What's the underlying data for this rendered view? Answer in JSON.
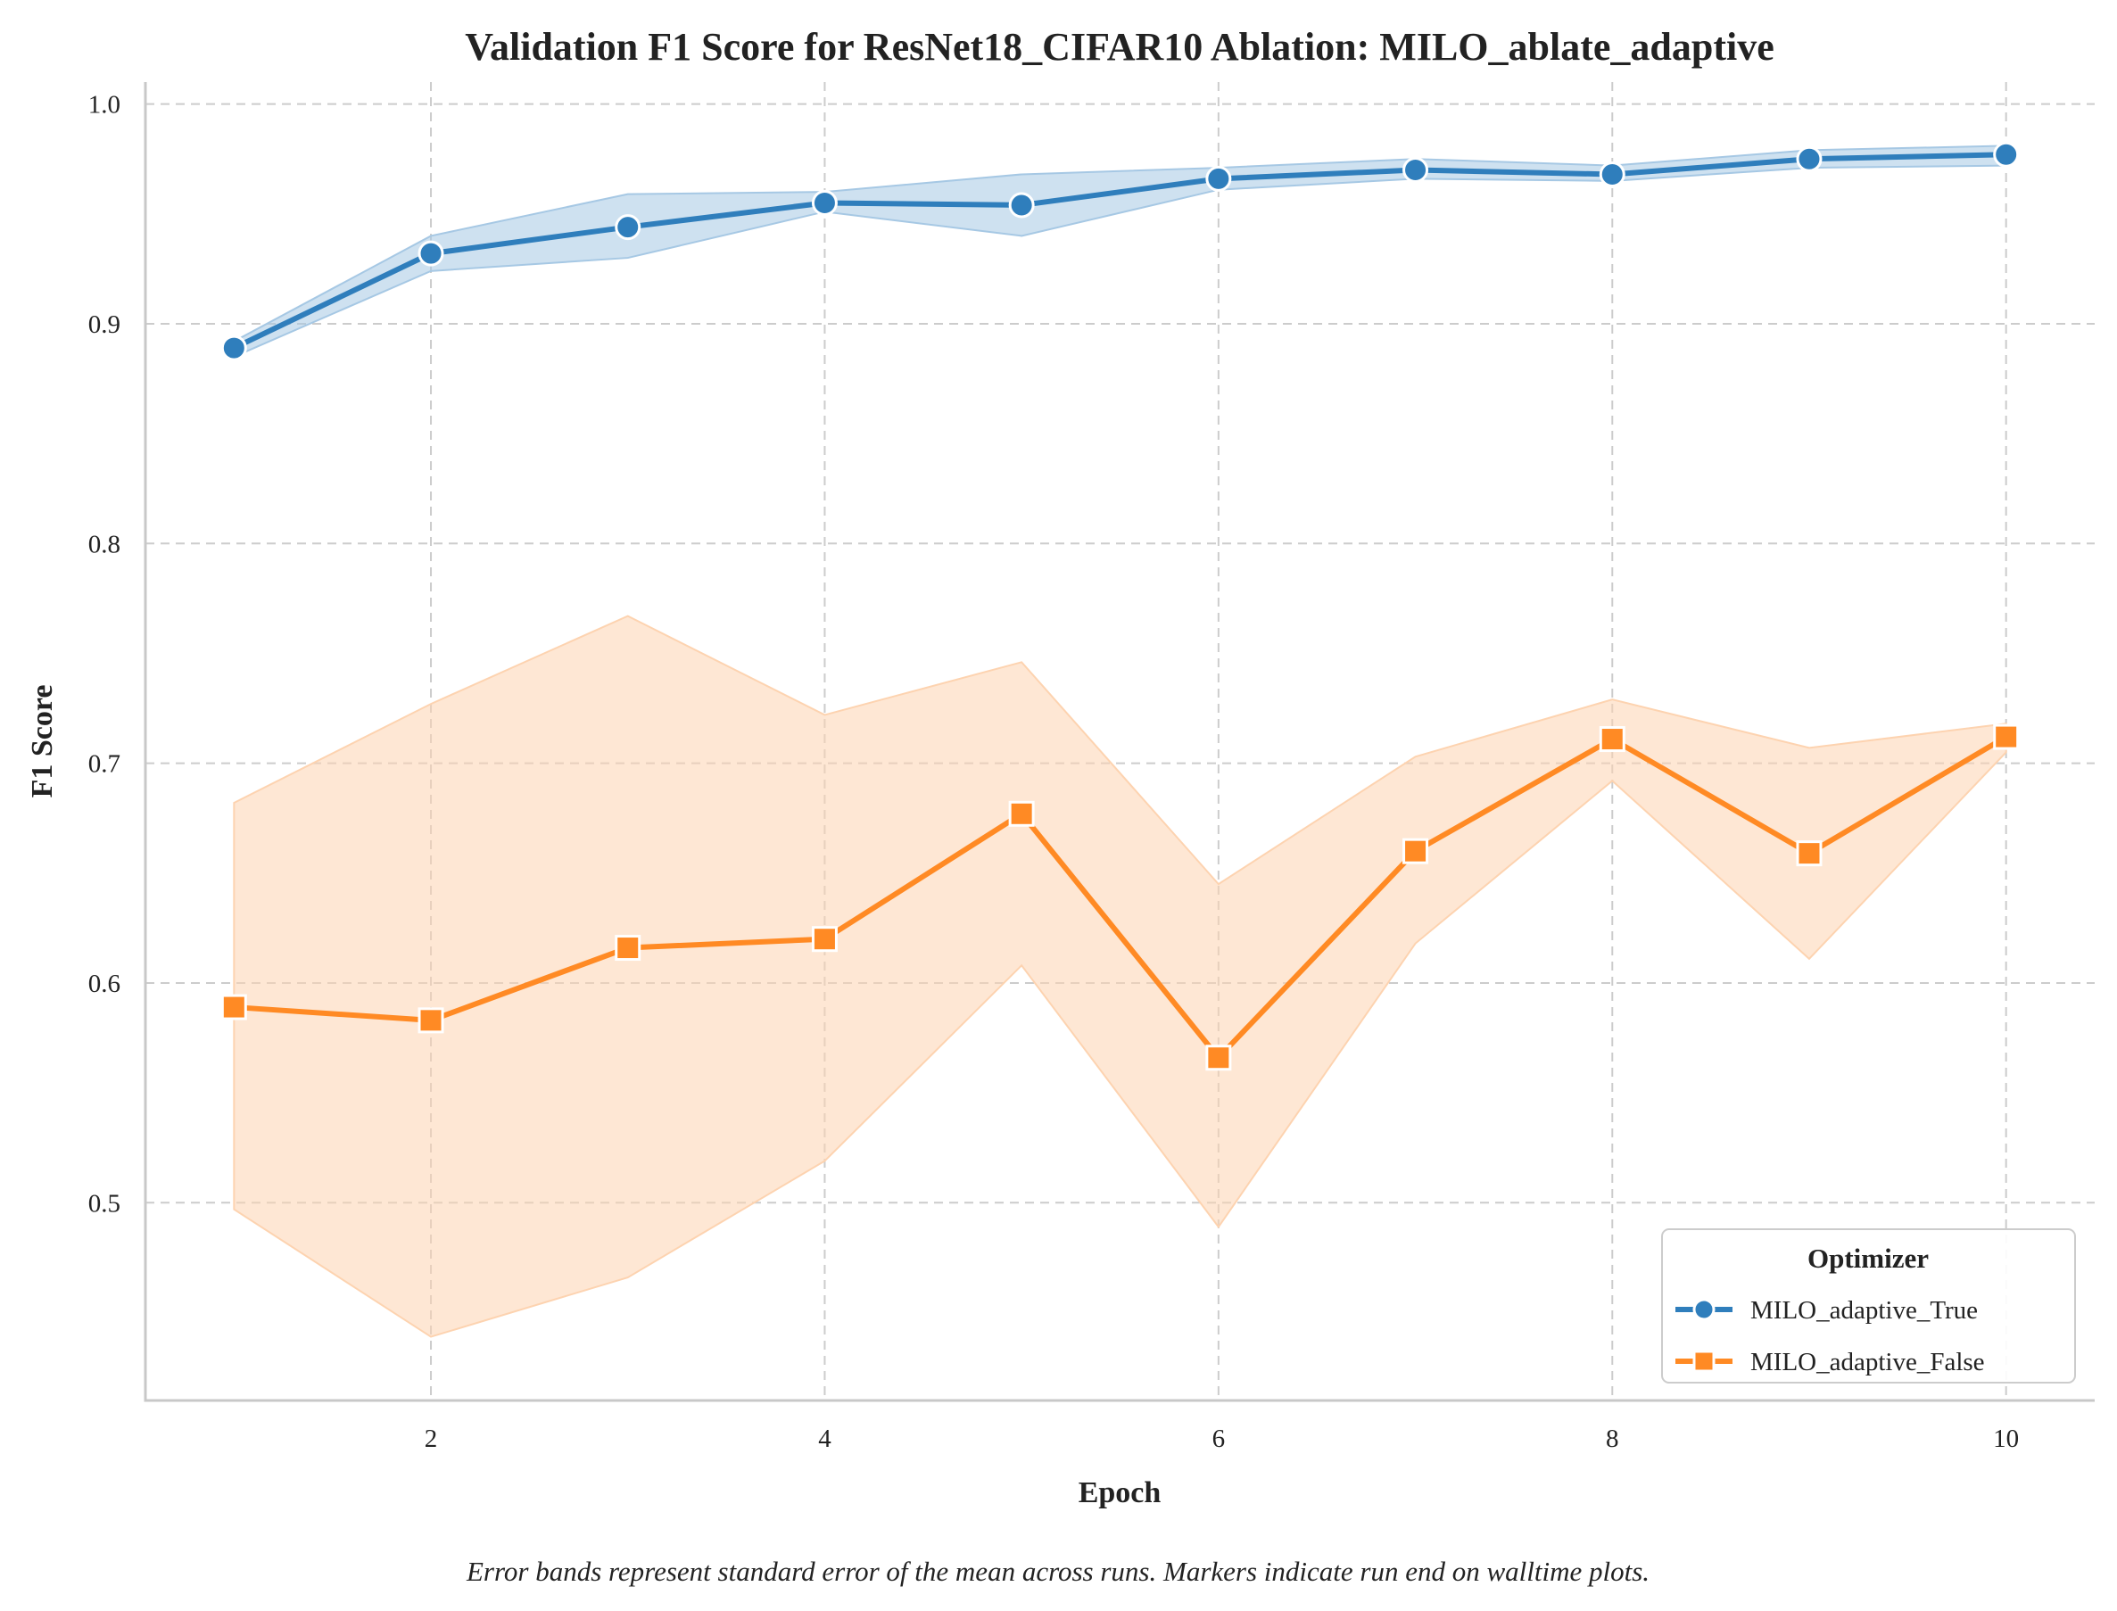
{
  "chart_data": {
    "type": "line",
    "title": "Validation F1 Score for ResNet18_CIFAR10 Ablation: MILO_ablate_adaptive",
    "xlabel": "Epoch",
    "ylabel": "F1 Score",
    "footnote": "Error bands represent standard error of the mean across runs. Markers indicate run end on walltime plots.",
    "xlim": [
      0.55,
      10.45
    ],
    "ylim": [
      0.41,
      1.01
    ],
    "xticks": [
      2,
      4,
      6,
      8,
      10
    ],
    "yticks": [
      0.5,
      0.6,
      0.7,
      0.8,
      0.9,
      1.0
    ],
    "ytick_labels": [
      "0.5",
      "0.6",
      "0.7",
      "0.8",
      "0.9",
      "1.0"
    ],
    "grid": true,
    "legend": {
      "title": "Optimizer",
      "position": "bottom-right"
    },
    "x": [
      1,
      2,
      3,
      4,
      5,
      6,
      7,
      8,
      9,
      10
    ],
    "series": [
      {
        "name": "MILO_adaptive_True",
        "color": "#2f7ebc",
        "band_color": "#a6c8e4",
        "marker": "circle",
        "values": [
          0.889,
          0.932,
          0.944,
          0.955,
          0.954,
          0.966,
          0.97,
          0.968,
          0.975,
          0.977
        ],
        "band_low": [
          0.885,
          0.924,
          0.93,
          0.951,
          0.94,
          0.961,
          0.966,
          0.965,
          0.971,
          0.972
        ],
        "band_high": [
          0.892,
          0.94,
          0.959,
          0.96,
          0.968,
          0.971,
          0.975,
          0.972,
          0.979,
          0.981
        ]
      },
      {
        "name": "MILO_adaptive_False",
        "color": "#ff8a24",
        "band_color": "#fdd3b0",
        "marker": "square",
        "values": [
          0.589,
          0.583,
          0.616,
          0.62,
          0.677,
          0.566,
          0.66,
          0.711,
          0.659,
          0.712
        ],
        "band_low": [
          0.497,
          0.439,
          0.466,
          0.519,
          0.608,
          0.489,
          0.618,
          0.692,
          0.611,
          0.705
        ],
        "band_high": [
          0.682,
          0.727,
          0.767,
          0.722,
          0.746,
          0.645,
          0.703,
          0.729,
          0.707,
          0.718
        ]
      }
    ]
  }
}
